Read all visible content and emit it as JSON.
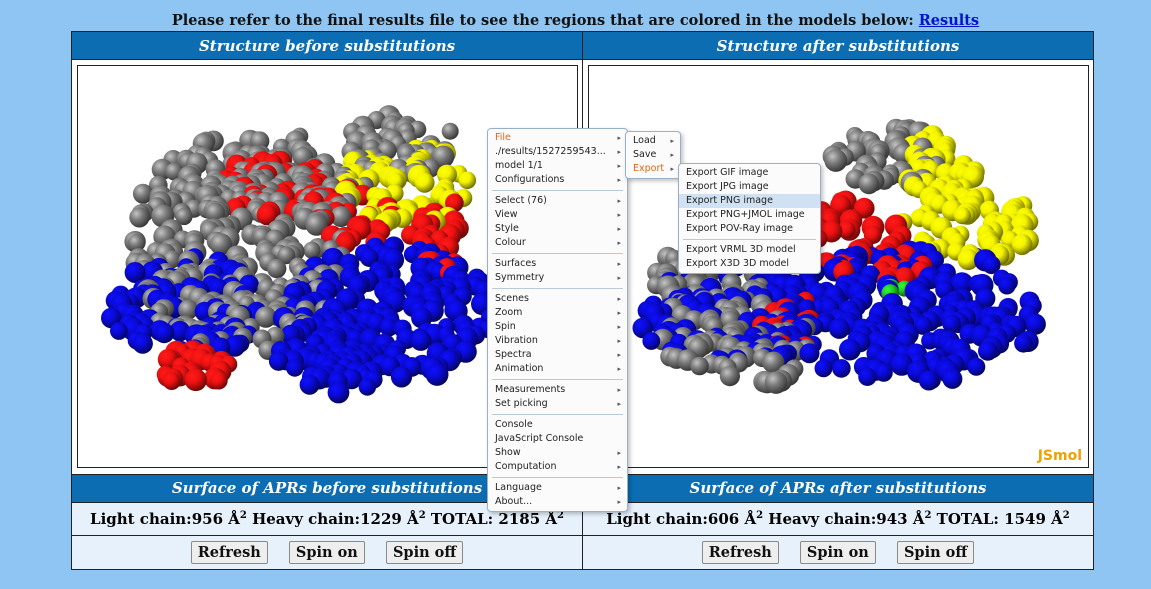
{
  "top_note": {
    "text": "Please refer to the final results file to see the regions that are colored in the models below:",
    "link_text": "Results"
  },
  "left": {
    "header": "Structure before substitutions",
    "surface_header": "Surface of APRs before substitutions",
    "light": "Light chain:956 Å",
    "heavy": " Heavy chain:1229 Å",
    "total": " TOTAL: 2185 Å",
    "exp": "2"
  },
  "right": {
    "header": "Structure after substitutions",
    "surface_header": "Surface of APRs after substitutions",
    "light": "Light chain:606 Å",
    "heavy": " Heavy chain:943 Å",
    "total": " TOTAL: 1549 Å",
    "exp": "2"
  },
  "buttons": {
    "refresh": "Refresh",
    "spin_on": "Spin on",
    "spin_off": "Spin off"
  },
  "jsmol_logo": "JSmol",
  "colors": {
    "background": "#8ec5f2",
    "header": "#0c6db3",
    "gray": "#7a7a7a",
    "red": "#ee1111",
    "blue": "#0a0ad6",
    "yellow": "#f2f200",
    "green": "#22cc22"
  },
  "context_menu": {
    "main": [
      {
        "label": "File",
        "arrow": true,
        "active": true
      },
      {
        "label": "./results/1527259543...",
        "arrow": true
      },
      {
        "label": "model 1/1",
        "arrow": true
      },
      {
        "label": "Configurations",
        "arrow": true
      },
      {
        "sep": true
      },
      {
        "label": "Select (76)",
        "arrow": true
      },
      {
        "label": "View",
        "arrow": true
      },
      {
        "label": "Style",
        "arrow": true
      },
      {
        "label": "Colour",
        "arrow": true
      },
      {
        "sep": true
      },
      {
        "label": "Surfaces",
        "arrow": true
      },
      {
        "label": "Symmetry",
        "arrow": true
      },
      {
        "sep": true
      },
      {
        "label": "Scenes",
        "arrow": true
      },
      {
        "label": "Zoom",
        "arrow": true
      },
      {
        "label": "Spin",
        "arrow": true
      },
      {
        "label": "Vibration",
        "arrow": true
      },
      {
        "label": "Spectra",
        "arrow": true
      },
      {
        "label": "Animation",
        "arrow": true
      },
      {
        "sep": true
      },
      {
        "label": "Measurements",
        "arrow": true
      },
      {
        "label": "Set picking",
        "arrow": true
      },
      {
        "sep": true
      },
      {
        "label": "Console",
        "arrow": false
      },
      {
        "label": "JavaScript Console",
        "arrow": false
      },
      {
        "label": "Show",
        "arrow": true
      },
      {
        "label": "Computation",
        "arrow": true
      },
      {
        "sep": true
      },
      {
        "label": "Language",
        "arrow": true
      },
      {
        "label": "About...",
        "arrow": true
      }
    ],
    "file": [
      {
        "label": "Load",
        "arrow": true
      },
      {
        "label": "Save",
        "arrow": true
      },
      {
        "label": "Export",
        "arrow": true,
        "active": true
      }
    ],
    "export": [
      {
        "label": "Export GIF image"
      },
      {
        "label": "Export JPG image"
      },
      {
        "label": "Export PNG image",
        "hl": true
      },
      {
        "label": "Export PNG+JMOL image"
      },
      {
        "label": "Export POV-Ray image"
      },
      {
        "sep": true
      },
      {
        "label": "Export VRML 3D model"
      },
      {
        "label": "Export X3D 3D model"
      }
    ]
  }
}
